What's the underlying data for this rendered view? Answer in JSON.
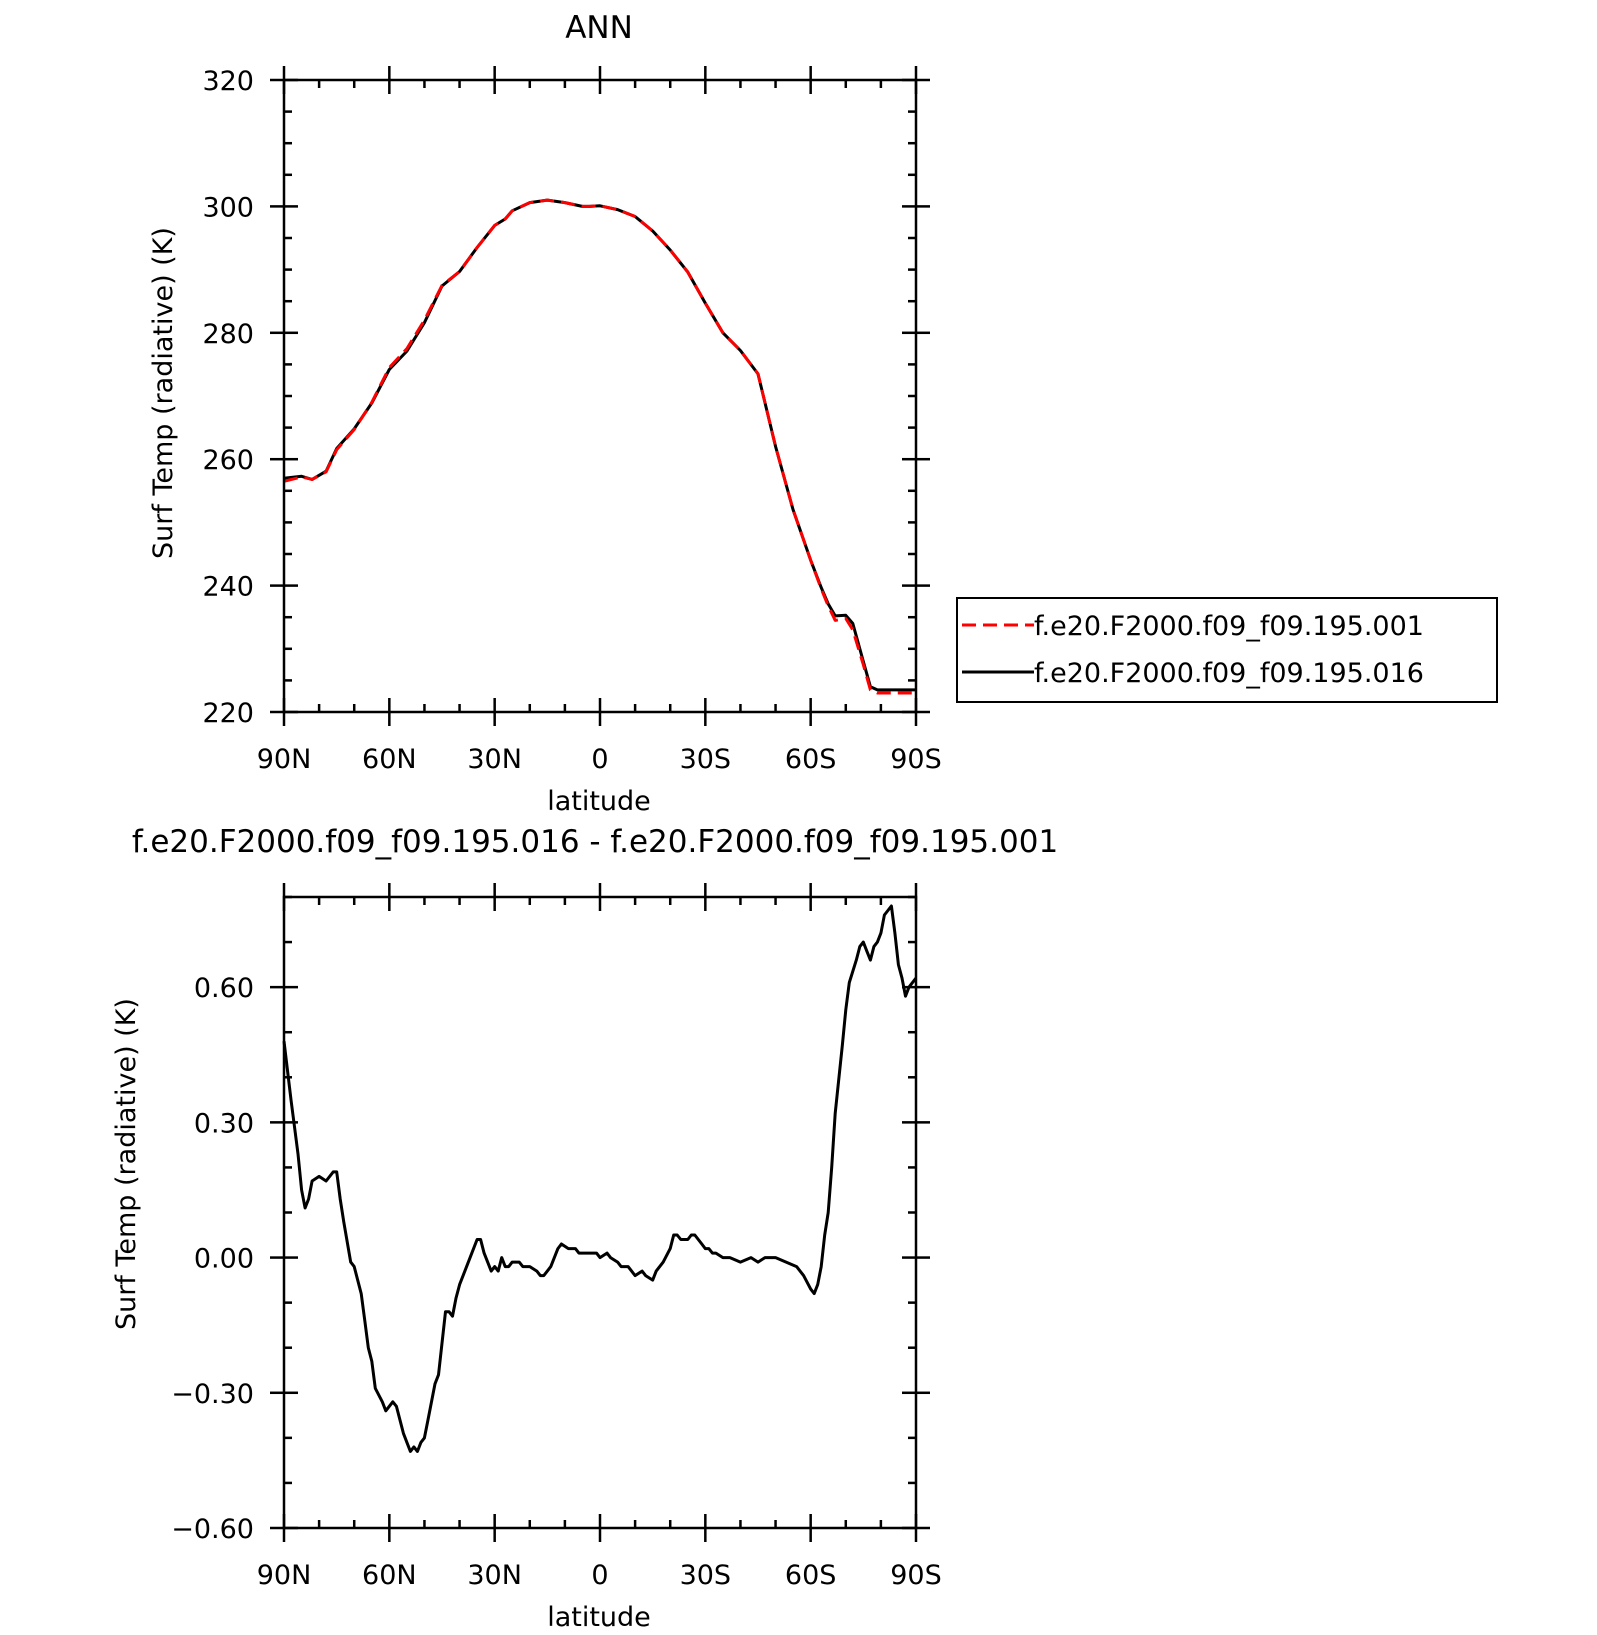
{
  "chart_data": [
    {
      "type": "line",
      "title": "ANN",
      "xlabel": "latitude",
      "ylabel": "Surf Temp (radiative) (K)",
      "x_ticks": [
        "90N",
        "60N",
        "30N",
        "0",
        "30S",
        "60S",
        "90S"
      ],
      "y_ticks": [
        "320",
        "300",
        "280",
        "260",
        "240",
        "220"
      ],
      "xlim": [
        90,
        -90
      ],
      "ylim": [
        220,
        320
      ],
      "series": [
        {
          "name": "f.e20.F2000.f09_f09.195.001",
          "color": "#ff0000",
          "dash": "dashed",
          "x": [
            90,
            85,
            82,
            78,
            75,
            70,
            65,
            60,
            55,
            50,
            45,
            40,
            35,
            30,
            27,
            25,
            20,
            15,
            10,
            5,
            3,
            0,
            -5,
            -10,
            -15,
            -20,
            -25,
            -30,
            -35,
            -40,
            -45,
            -50,
            -55,
            -60,
            -63,
            -65,
            -67,
            -70,
            -72,
            -75,
            -77,
            -79,
            -82,
            -84,
            -86,
            -88,
            -90
          ],
          "y": [
            256.5,
            257.2,
            256.8,
            258.0,
            261.5,
            264.7,
            269.0,
            274.5,
            277.5,
            282.0,
            287.5,
            289.7,
            293.5,
            297.0,
            298.0,
            299.3,
            300.6,
            301.0,
            300.6,
            300.0,
            300.0,
            300.1,
            299.5,
            298.4,
            296.1,
            293.1,
            289.6,
            284.7,
            280.0,
            277.2,
            273.5,
            262.0,
            252.0,
            244.0,
            239.5,
            236.8,
            234.5,
            234.8,
            233.0,
            227.5,
            223.5,
            223.0,
            223.0,
            223.0,
            223.0,
            223.0,
            223.0
          ]
        },
        {
          "name": "f.e20.F2000.f09_f09.195.016",
          "color": "#000000",
          "dash": "solid",
          "x": [
            90,
            85,
            82,
            78,
            75,
            70,
            65,
            60,
            55,
            50,
            45,
            40,
            35,
            30,
            27,
            25,
            20,
            15,
            10,
            5,
            3,
            0,
            -5,
            -10,
            -15,
            -20,
            -25,
            -30,
            -35,
            -40,
            -45,
            -50,
            -55,
            -60,
            -63,
            -65,
            -67,
            -70,
            -72,
            -75,
            -77,
            -79,
            -82,
            -84,
            -86,
            -88,
            -90
          ],
          "y": [
            257.0,
            257.3,
            256.8,
            258.1,
            261.7,
            264.8,
            268.9,
            274.2,
            277.1,
            281.6,
            287.4,
            289.7,
            293.5,
            297.0,
            298.0,
            299.3,
            300.6,
            301.0,
            300.6,
            300.0,
            300.0,
            300.1,
            299.5,
            298.4,
            296.1,
            293.1,
            289.6,
            284.7,
            280.0,
            277.2,
            273.5,
            262.0,
            252.0,
            244.0,
            239.7,
            237.1,
            235.2,
            235.3,
            234.0,
            228.0,
            224.0,
            223.5,
            223.5,
            223.5,
            223.5,
            223.5,
            223.5
          ]
        }
      ],
      "legend": "right"
    },
    {
      "type": "line",
      "title": "f.e20.F2000.f09_f09.195.016 - f.e20.F2000.f09_f09.195.001",
      "xlabel": "latitude",
      "ylabel": "Surf Temp (radiative) (K)",
      "x_ticks": [
        "90N",
        "60N",
        "30N",
        "0",
        "30S",
        "60S",
        "90S"
      ],
      "y_ticks": [
        "0.60",
        "0.30",
        "0.00",
        "−0.30",
        "−0.60"
      ],
      "xlim": [
        90,
        -90
      ],
      "ylim": [
        -0.6,
        0.8
      ],
      "series": [
        {
          "color": "#000000",
          "x": [
            90,
            88,
            86,
            85,
            84,
            83,
            82,
            80,
            78,
            76,
            75,
            74,
            73,
            71,
            70,
            69,
            68,
            67,
            66,
            65,
            64,
            62,
            61,
            59,
            58,
            57,
            56,
            55,
            54,
            53,
            52,
            51,
            50,
            49,
            47,
            46,
            45,
            44,
            43,
            42,
            41,
            40,
            38,
            37,
            35,
            34,
            33,
            31,
            30,
            29,
            28,
            27,
            26,
            25,
            24,
            23,
            22,
            20,
            18,
            17,
            16,
            14,
            12,
            11,
            9,
            7,
            6,
            4,
            3,
            1,
            0,
            -2,
            -3,
            -5,
            -6,
            -8,
            -9,
            -10,
            -12,
            -13,
            -15,
            -16,
            -17,
            -18,
            -20,
            -21,
            -22,
            -23,
            -24,
            -25,
            -26,
            -27,
            -29,
            -30,
            -31,
            -32,
            -33,
            -35,
            -37,
            -40,
            -43,
            -45,
            -47,
            -50,
            -53,
            -56,
            -58,
            -60,
            -61,
            -62,
            -63,
            -64,
            -65,
            -66,
            -67,
            -69,
            -70,
            -71,
            -73,
            -74,
            -75,
            -76,
            -77,
            -78,
            -79,
            -80,
            -81,
            -82,
            -83,
            -84,
            -85,
            -86,
            -87,
            -88,
            -89,
            -90
          ],
          "y": [
            0.48,
            0.35,
            0.23,
            0.15,
            0.11,
            0.13,
            0.17,
            0.18,
            0.17,
            0.19,
            0.19,
            0.13,
            0.08,
            -0.01,
            -0.02,
            -0.05,
            -0.08,
            -0.14,
            -0.2,
            -0.23,
            -0.29,
            -0.32,
            -0.34,
            -0.32,
            -0.33,
            -0.36,
            -0.39,
            -0.41,
            -0.43,
            -0.42,
            -0.43,
            -0.41,
            -0.4,
            -0.36,
            -0.28,
            -0.26,
            -0.19,
            -0.12,
            -0.12,
            -0.13,
            -0.09,
            -0.06,
            -0.02,
            0.0,
            0.04,
            0.04,
            0.01,
            -0.03,
            -0.02,
            -0.03,
            0.0,
            -0.02,
            -0.02,
            -0.01,
            -0.01,
            -0.01,
            -0.02,
            -0.02,
            -0.03,
            -0.04,
            -0.04,
            -0.02,
            0.02,
            0.03,
            0.02,
            0.02,
            0.01,
            0.01,
            0.01,
            0.01,
            0.0,
            0.01,
            0.0,
            -0.01,
            -0.02,
            -0.02,
            -0.03,
            -0.04,
            -0.03,
            -0.04,
            -0.05,
            -0.03,
            -0.02,
            -0.01,
            0.02,
            0.05,
            0.05,
            0.04,
            0.04,
            0.04,
            0.05,
            0.05,
            0.03,
            0.02,
            0.02,
            0.01,
            0.01,
            0.0,
            0.0,
            -0.01,
            0.0,
            -0.01,
            0.0,
            0.0,
            -0.01,
            -0.02,
            -0.04,
            -0.07,
            -0.08,
            -0.06,
            -0.02,
            0.05,
            0.1,
            0.2,
            0.32,
            0.47,
            0.55,
            0.61,
            0.66,
            0.69,
            0.7,
            0.68,
            0.66,
            0.69,
            0.7,
            0.72,
            0.76,
            0.77,
            0.78,
            0.72,
            0.65,
            0.62,
            0.58,
            0.6,
            0.61,
            0.62
          ]
        }
      ]
    }
  ]
}
